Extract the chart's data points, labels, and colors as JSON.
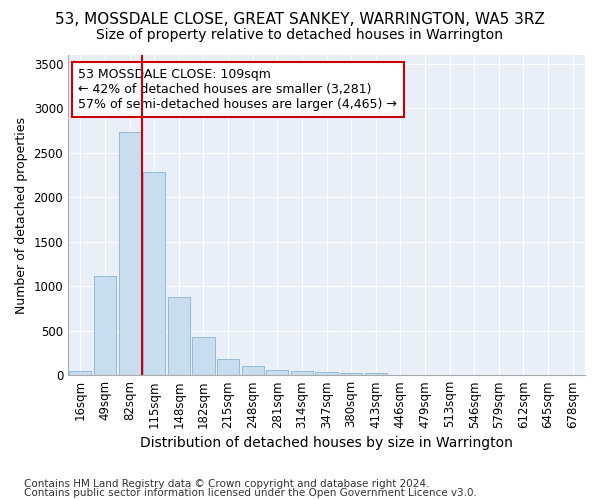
{
  "title1": "53, MOSSDALE CLOSE, GREAT SANKEY, WARRINGTON, WA5 3RZ",
  "title2": "Size of property relative to detached houses in Warrington",
  "xlabel": "Distribution of detached houses by size in Warrington",
  "ylabel": "Number of detached properties",
  "categories": [
    "16sqm",
    "49sqm",
    "82sqm",
    "115sqm",
    "148sqm",
    "182sqm",
    "215sqm",
    "248sqm",
    "281sqm",
    "314sqm",
    "347sqm",
    "380sqm",
    "413sqm",
    "446sqm",
    "479sqm",
    "513sqm",
    "546sqm",
    "579sqm",
    "612sqm",
    "645sqm",
    "678sqm"
  ],
  "values": [
    50,
    1110,
    2730,
    2290,
    880,
    430,
    185,
    100,
    60,
    45,
    40,
    30,
    25,
    0,
    0,
    0,
    0,
    0,
    0,
    0,
    0
  ],
  "bar_color": "#c9ddf0",
  "bar_edgecolor": "#8ab4d8",
  "vline_color": "#cc0000",
  "annotation_line1": "53 MOSSDALE CLOSE: 109sqm",
  "annotation_line2": "← 42% of detached houses are smaller (3,281)",
  "annotation_line3": "57% of semi-detached houses are larger (4,465) →",
  "annotation_box_color": "#ffffff",
  "annotation_box_edgecolor": "#cc0000",
  "ylim": [
    0,
    3600
  ],
  "yticks": [
    0,
    500,
    1000,
    1500,
    2000,
    2500,
    3000,
    3500
  ],
  "footer1": "Contains HM Land Registry data © Crown copyright and database right 2024.",
  "footer2": "Contains public sector information licensed under the Open Government Licence v3.0.",
  "bg_color": "#ffffff",
  "plot_bg_color": "#e8eff8",
  "title1_fontsize": 11,
  "title2_fontsize": 10,
  "xlabel_fontsize": 10,
  "ylabel_fontsize": 9,
  "tick_fontsize": 8.5,
  "footer_fontsize": 7.5,
  "annot_fontsize": 9
}
